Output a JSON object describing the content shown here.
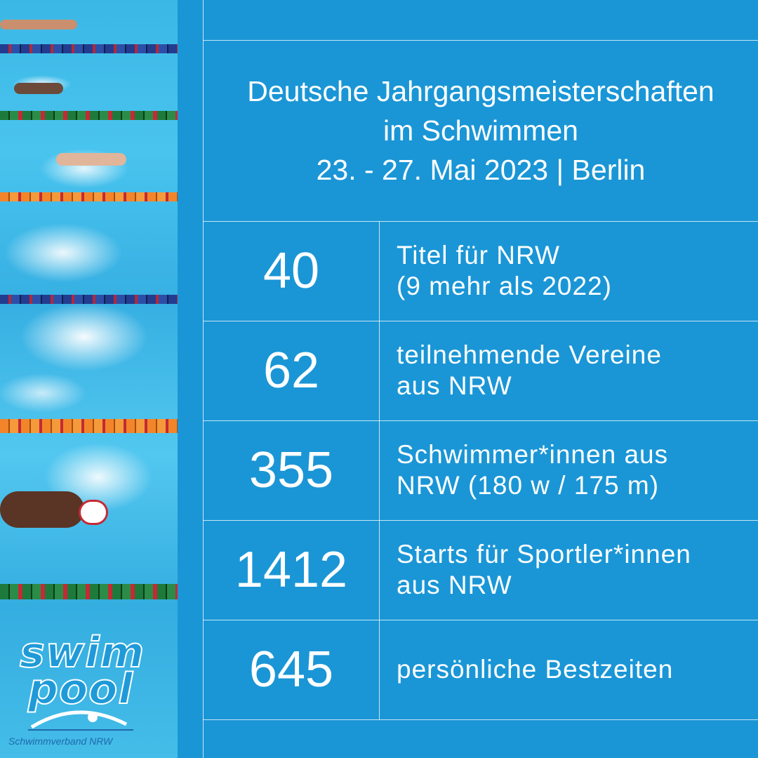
{
  "header": {
    "line1": "Deutsche Jahrgangsmeisterschaften",
    "line2": "im Schwimmen",
    "line3": "23. - 27. Mai 2023 | Berlin"
  },
  "stats": [
    {
      "value": "40",
      "line1": "Titel für NRW",
      "line2": "(9 mehr als 2022)"
    },
    {
      "value": "62",
      "line1": "teilnehmende Vereine",
      "line2": "aus NRW"
    },
    {
      "value": "355",
      "line1": "Schwimmer*innen aus",
      "line2": "NRW (180 w / 175 m)"
    },
    {
      "value": "1412",
      "line1": "Starts für Sportler*innen",
      "line2": "aus NRW"
    },
    {
      "value": "645",
      "line1": "persönliche Bestzeiten",
      "line2": ""
    }
  ],
  "logo": {
    "word1": "swim",
    "word2": "pool",
    "subtitle": "Schwimmverband NRW"
  },
  "colors": {
    "panel": "#1a96d6",
    "text": "#ffffff",
    "logo_blue": "#1f9ad8"
  }
}
